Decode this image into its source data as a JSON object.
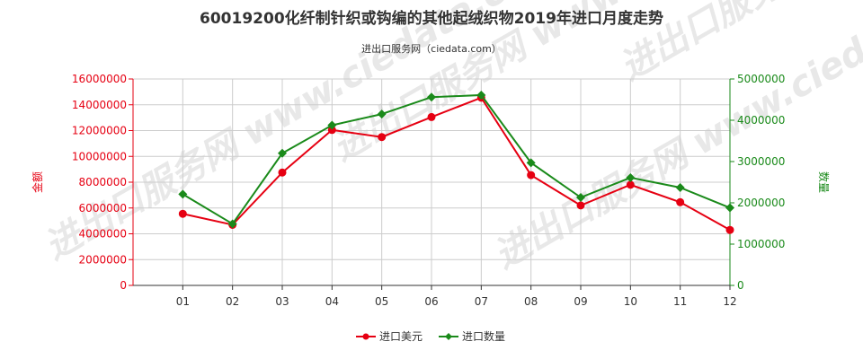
{
  "chart_data": {
    "type": "line",
    "title": "60019200化纤制针织或钩编的其他起绒织物2019年进口月度走势",
    "subtitle": "进出口服务网（ciedata.com）",
    "watermark": "进出口服务网 www.ciedata.com",
    "categories": [
      "01",
      "02",
      "03",
      "04",
      "05",
      "06",
      "07",
      "08",
      "09",
      "10",
      "11",
      "12"
    ],
    "y_left": {
      "label": "金额",
      "min": 0,
      "max": 16000000,
      "ticks": [
        0,
        2000000,
        4000000,
        6000000,
        8000000,
        10000000,
        12000000,
        14000000,
        16000000
      ],
      "tick_labels": [
        "0",
        "2000000",
        "4000000",
        "6000000",
        "8000000",
        "10000000",
        "12000000",
        "14000000",
        "16000000"
      ]
    },
    "y_right": {
      "label": "数量",
      "min": 0,
      "max": 5000000,
      "ticks": [
        0,
        1000000,
        2000000,
        3000000,
        4000000,
        5000000
      ],
      "tick_labels": [
        "0",
        "1000000",
        "2000000",
        "3000000",
        "4000000",
        "5000000"
      ]
    },
    "series": [
      {
        "name": "进口美元",
        "axis": "left",
        "color": "#e60012",
        "marker": "circle",
        "values": [
          5550000,
          4700000,
          8750000,
          12050000,
          11500000,
          13050000,
          14550000,
          8550000,
          6200000,
          7800000,
          6450000,
          4300000
        ]
      },
      {
        "name": "进口数量",
        "axis": "right",
        "color": "#1a8a1a",
        "marker": "diamond",
        "values": [
          2210000,
          1490000,
          3200000,
          3880000,
          4150000,
          4560000,
          4610000,
          2970000,
          2130000,
          2610000,
          2370000,
          1880000
        ]
      }
    ],
    "grid": true,
    "legend_position": "bottom"
  }
}
